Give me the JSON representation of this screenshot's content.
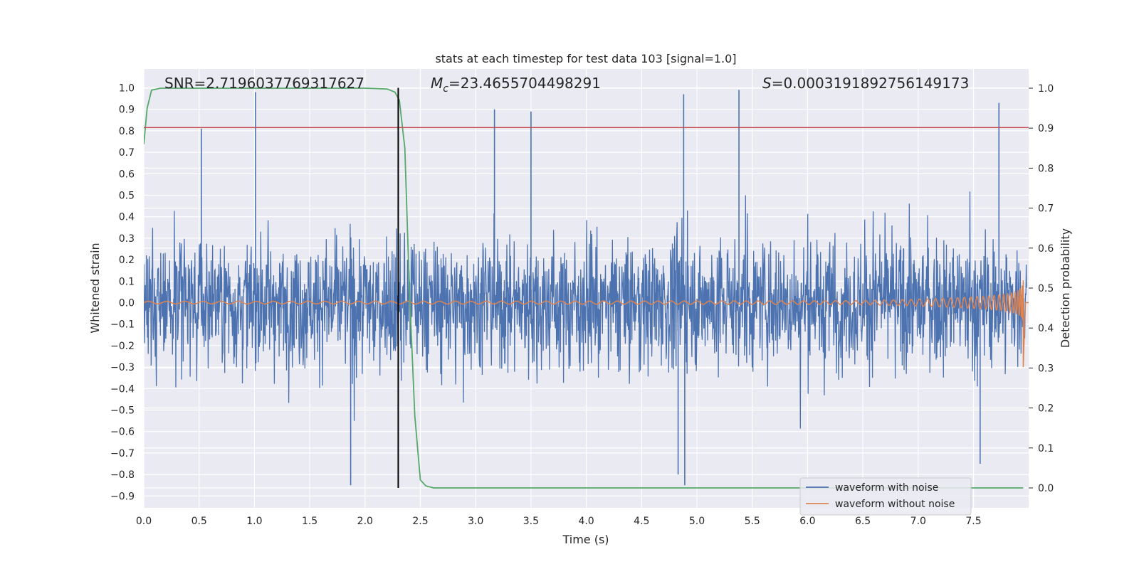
{
  "chart_data": {
    "type": "line",
    "title": "stats at each timestep for test data 103 [signal=1.0]",
    "xlabel": "Time (s)",
    "ylabel": "Whitened strain",
    "y2label": "Detection probability",
    "xlim": [
      0.0,
      8.0
    ],
    "ylim": [
      -0.95,
      1.08
    ],
    "y2lim": [
      -0.05,
      1.04
    ],
    "grid": true,
    "legend_position": "bottom-right",
    "x_ticks": [
      "0.0",
      "0.5",
      "1.0",
      "1.5",
      "2.0",
      "2.5",
      "3.0",
      "3.5",
      "4.0",
      "4.5",
      "5.0",
      "5.5",
      "6.0",
      "6.5",
      "7.0",
      "7.5"
    ],
    "y_ticks": [
      "1.0",
      "0.9",
      "0.8",
      "0.7",
      "0.6",
      "0.5",
      "0.4",
      "0.3",
      "0.2",
      "0.1",
      "0.0",
      "-0.1",
      "-0.2",
      "-0.3",
      "-0.4",
      "-0.5",
      "-0.6",
      "-0.7",
      "-0.8",
      "-0.9"
    ],
    "y2_ticks": [
      "1.0",
      "0.9",
      "0.8",
      "0.7",
      "0.6",
      "0.5",
      "0.4",
      "0.3",
      "0.2",
      "0.1",
      "0.0"
    ],
    "annotations": {
      "snr": "SNR=2.7196037769317627",
      "mc_symbol": "M",
      "mc_sub": "c",
      "mc_value": "=23.4655704498291",
      "s_symbol": "S",
      "s_value": "=0.0003191892756149173"
    },
    "series": [
      {
        "name": "waveform with noise",
        "color": "#4c72b0",
        "axis": "left",
        "description_values": {
          "typical_amplitude": 0.4,
          "peaks": [
            [
              0.52,
              0.81
            ],
            [
              1.01,
              0.98
            ],
            [
              3.17,
              0.9
            ],
            [
              3.5,
              0.89
            ],
            [
              4.88,
              0.97
            ],
            [
              5.38,
              0.99
            ],
            [
              7.73,
              0.93
            ],
            [
              1.87,
              -0.85
            ],
            [
              4.89,
              -0.85
            ],
            [
              4.83,
              -0.8
            ],
            [
              7.56,
              -0.75
            ]
          ]
        }
      },
      {
        "name": "waveform without noise",
        "color": "#dd8452",
        "axis": "left",
        "description_values": {
          "chirp_end_time": 7.95,
          "max_amplitude": 0.27,
          "min_amplitude": -0.3
        }
      },
      {
        "name": "detection probability",
        "color": "#55a868",
        "axis": "right",
        "x": [
          0.0,
          0.03,
          0.07,
          0.15,
          0.5,
          1.0,
          1.5,
          2.0,
          2.2,
          2.27,
          2.31,
          2.36,
          2.4,
          2.45,
          2.5,
          2.55,
          2.62,
          3.0,
          5.0,
          7.0,
          7.95
        ],
        "values": [
          0.86,
          0.95,
          0.995,
          1.0,
          1.0,
          1.0,
          1.0,
          1.0,
          0.998,
          0.99,
          0.97,
          0.85,
          0.5,
          0.18,
          0.02,
          0.005,
          0.0,
          0.0,
          0.0,
          0.0,
          0.0
        ]
      },
      {
        "name": "threshold",
        "color": "#c44e52",
        "axis": "left",
        "values": [
          0.815
        ]
      },
      {
        "name": "event marker",
        "color": "#000000",
        "axis": "left",
        "x": [
          2.3
        ]
      }
    ]
  }
}
